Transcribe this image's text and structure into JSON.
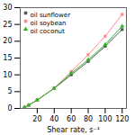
{
  "chart_data": {
    "type": "line",
    "xlabel": "Shear rate, s⁻¹",
    "x": [
      5,
      10,
      20,
      40,
      60,
      80,
      100,
      120
    ],
    "series": [
      {
        "name": "oil sunflower",
        "color": "#555555",
        "marker": "square",
        "values": [
          0.3,
          1.0,
          2.5,
          6.0,
          10.0,
          14.0,
          18.5,
          23.5
        ]
      },
      {
        "name": "oil soybean",
        "color": "#ff8888",
        "marker": "square",
        "values": [
          0.3,
          1.0,
          2.5,
          6.0,
          11.0,
          16.0,
          21.5,
          28.0
        ]
      },
      {
        "name": "oil coconut",
        "color": "#22bb22",
        "marker": "triangle",
        "values": [
          0.3,
          1.0,
          2.5,
          6.0,
          10.5,
          14.5,
          19.0,
          24.5
        ]
      }
    ],
    "xlim": [
      0,
      125
    ],
    "ylim": [
      0,
      30
    ],
    "xticks": [
      20,
      40,
      60,
      80,
      100,
      120
    ],
    "yticks": [
      0,
      5,
      10,
      15,
      20,
      25,
      30
    ],
    "grid": false,
    "legend": "upper left"
  }
}
